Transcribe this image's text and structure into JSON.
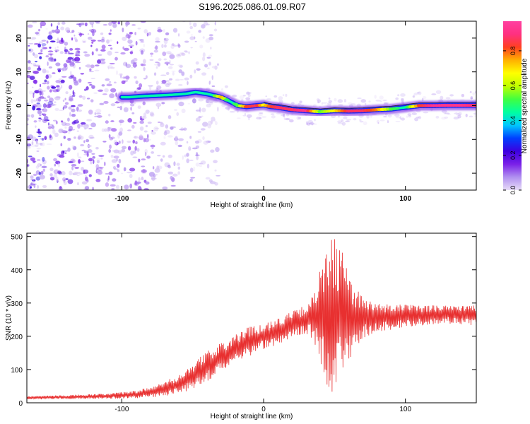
{
  "title": "S196.2025.086.01.09.R07",
  "colormap": [
    "#e8dcf8",
    "#b090f0",
    "#7a20e8",
    "#3c00e0",
    "#0040ff",
    "#00c8ff",
    "#00ffa0",
    "#40ff40",
    "#c0ff00",
    "#ffff00",
    "#ffb000",
    "#ff4020",
    "#ff3080",
    "#ff40a0"
  ],
  "chart_data": [
    {
      "type": "heatmap",
      "xlabel": "Height of straight line (km)",
      "ylabel": "Frequency (Hz)",
      "xlim": [
        -167,
        150
      ],
      "ylim": [
        -25,
        25
      ],
      "xticks": [
        -100,
        0,
        100
      ],
      "yticks": [
        -20,
        -10,
        0,
        10,
        20
      ],
      "colorbar": {
        "label": "Normalized spectral amplitude",
        "range": [
          0.0,
          0.97
        ],
        "ticks": [
          "0.0",
          "0.2",
          "0.4",
          "0.6",
          "0.8"
        ]
      },
      "ridge": {
        "x": [
          -95,
          -85,
          -75,
          -65,
          -55,
          -48,
          -40,
          -30,
          -25,
          -18,
          -12,
          -5,
          0,
          5,
          10,
          20,
          30,
          40,
          50,
          60,
          70,
          80,
          90,
          100,
          110,
          120,
          130,
          140,
          150
        ],
        "frequency": [
          2.5,
          2.8,
          3.0,
          3.2,
          3.5,
          4.0,
          3.5,
          2.5,
          1.5,
          0.0,
          -0.3,
          0.0,
          0.2,
          -0.3,
          -0.5,
          -1.2,
          -1.5,
          -1.8,
          -1.5,
          -1.6,
          -1.5,
          -1.2,
          -1.0,
          -0.5,
          0.0,
          0.0,
          0.1,
          0.1,
          0.1
        ],
        "amplitude": [
          0.3,
          0.32,
          0.3,
          0.35,
          0.32,
          0.4,
          0.3,
          0.75,
          0.45,
          0.55,
          0.85,
          0.9,
          0.7,
          0.85,
          0.9,
          0.9,
          0.95,
          0.55,
          0.7,
          0.9,
          0.9,
          0.8,
          0.55,
          0.45,
          0.85,
          0.95,
          0.95,
          0.95,
          0.9
        ]
      }
    },
    {
      "type": "line",
      "xlabel": "Height of straight line (km)",
      "ylabel": "SNR (10 * v/v)",
      "xlim": [
        -167,
        150
      ],
      "ylim": [
        0,
        510
      ],
      "xticks": [
        -100,
        0,
        100
      ],
      "yticks": [
        0,
        100,
        200,
        300,
        400,
        500
      ],
      "color": "#e83030",
      "envelope": {
        "x": [
          -167,
          -140,
          -110,
          -90,
          -75,
          -60,
          -50,
          -40,
          -30,
          -20,
          -10,
          0,
          10,
          20,
          30,
          35,
          40,
          45,
          50,
          55,
          60,
          65,
          70,
          80,
          90,
          100,
          110,
          120,
          130,
          140,
          150
        ],
        "mean": [
          15,
          17,
          20,
          25,
          35,
          55,
          80,
          110,
          135,
          160,
          185,
          200,
          215,
          235,
          250,
          258,
          262,
          265,
          265,
          262,
          258,
          255,
          255,
          255,
          258,
          262,
          262,
          265,
          268,
          265,
          262
        ],
        "spread": [
          5,
          6,
          8,
          12,
          18,
          30,
          40,
          45,
          45,
          45,
          45,
          40,
          40,
          40,
          45,
          70,
          140,
          230,
          240,
          200,
          150,
          100,
          60,
          45,
          40,
          35,
          30,
          30,
          30,
          30,
          30
        ]
      }
    }
  ]
}
